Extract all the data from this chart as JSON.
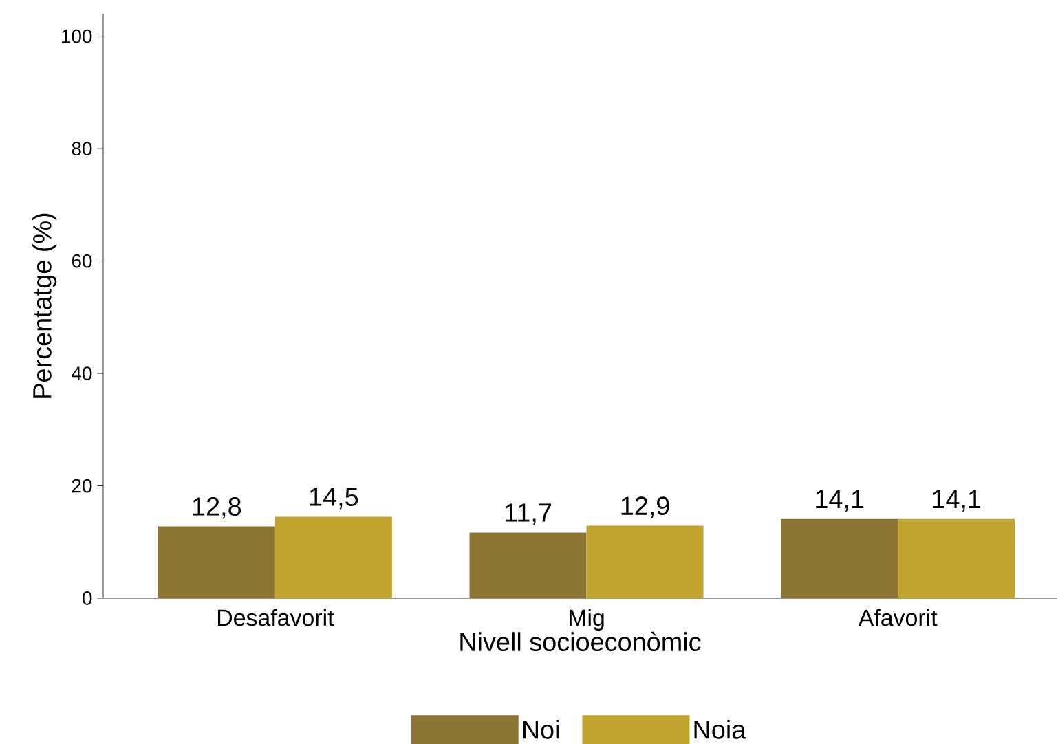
{
  "chart_data": {
    "type": "bar",
    "xlabel": "Nivell socioeconòmic",
    "ylabel": "Percentatge (%)",
    "categories": [
      "Desafavorit",
      "Mig",
      "Afavorit"
    ],
    "series": [
      {
        "name": "Noi",
        "color": "#8c7432",
        "values": [
          12.8,
          11.7,
          14.1
        ],
        "value_labels": [
          "12,8",
          "11,7",
          "14,1"
        ]
      },
      {
        "name": "Noia",
        "color": "#c0a42e",
        "values": [
          14.5,
          12.9,
          14.1
        ],
        "value_labels": [
          "14,5",
          "12,9",
          "14,1"
        ]
      }
    ],
    "ylim": [
      0,
      104
    ],
    "yticks": [
      0,
      20,
      40,
      60,
      80,
      100
    ],
    "grid": false,
    "legend": "bottom"
  }
}
